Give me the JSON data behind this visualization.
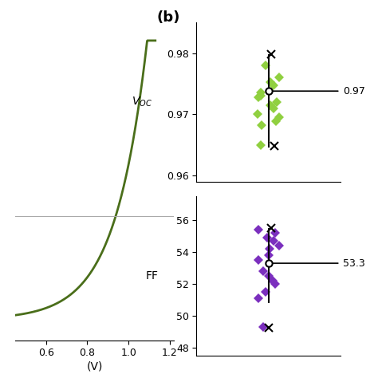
{
  "left_panel": {
    "curve_color": "#4a6e1a",
    "horizontal_line_y": 0.5,
    "xlabel": "(V)",
    "x_ticks": [
      0.6,
      0.8,
      1.0,
      1.2
    ],
    "ylim": [
      -0.1,
      1.4
    ]
  },
  "voc_panel": {
    "title": "(b)",
    "ylabel": "$V_{OC}$",
    "ylim": [
      0.959,
      0.985
    ],
    "yticks": [
      0.96,
      0.97,
      0.98
    ],
    "mean_val": 0.9738,
    "mean_label": "0.97",
    "std_up": 0.9798,
    "std_down": 0.9645,
    "diamond_color": "#90d040",
    "cross_color": "black",
    "diamonds": [
      0.978,
      0.976,
      0.9748,
      0.9752,
      0.9735,
      0.973,
      0.9728,
      0.972,
      0.9715,
      0.971,
      0.97,
      0.9695,
      0.9688,
      0.9682,
      0.965
    ],
    "crosses": [
      0.9798,
      0.9648
    ]
  },
  "ff_panel": {
    "ylabel": "FF",
    "ylim": [
      47.5,
      57.5
    ],
    "yticks": [
      48,
      50,
      52,
      54,
      56
    ],
    "mean_val": 53.3,
    "mean_label": "53.3",
    "std_up": 55.5,
    "std_down": 50.8,
    "diamond_color": "#7b2fbe",
    "cross_color": "black",
    "diamonds": [
      55.4,
      55.2,
      54.9,
      54.7,
      54.4,
      54.2,
      53.8,
      53.5,
      52.8,
      52.5,
      52.2,
      52.0,
      51.5,
      51.1,
      49.3
    ],
    "crosses": [
      55.5,
      49.25
    ]
  }
}
